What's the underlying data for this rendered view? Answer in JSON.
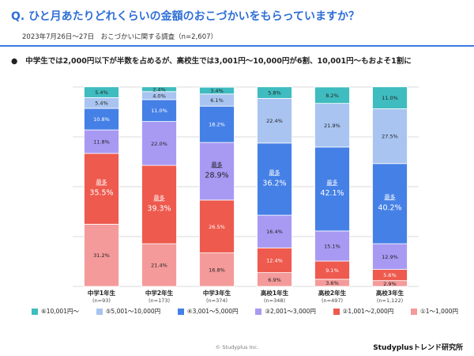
{
  "header": {
    "title": "Q. ひと月あたりどれくらいの金額のおこづかいをもらっていますか？",
    "subtitle": "2023年7月26日〜27日　おこづかいに関する調査（n=2,607）",
    "headline": "中学生では2,000円以下が半数を占めるが、高校生では3,001円〜10,000円が6割、10,001円〜もおよそ1割に",
    "bullet": "●"
  },
  "footer": {
    "copyright": "© Studyplus Inc.",
    "brand": "Studyplusトレンド研究所"
  },
  "chart_data": {
    "type": "bar",
    "stacked": true,
    "percent": true,
    "ylim": [
      0,
      100
    ],
    "grid": true,
    "legend_position": "bottom",
    "categories": [
      "中学1年生",
      "中学2年生",
      "中学3年生",
      "高校1年生",
      "高校2年生",
      "高校3年生"
    ],
    "category_n": [
      "(n=93)",
      "(n=173)",
      "(n=374)",
      "(n=348)",
      "(n=497)",
      "(n=1,122)"
    ],
    "highlight_label": "最多",
    "highlight": [
      1,
      1,
      2,
      3,
      3,
      3
    ],
    "series": [
      {
        "name": "①1〜1,000円",
        "color": "#f49a9a",
        "values": [
          31.2,
          21.4,
          16.8,
          6.9,
          3.6,
          2.9
        ]
      },
      {
        "name": "②1,001〜2,000円",
        "color": "#ee5a4e",
        "values": [
          35.5,
          39.3,
          26.5,
          12.4,
          9.1,
          5.6
        ]
      },
      {
        "name": "③2,001〜3,000円",
        "color": "#a89af3",
        "values": [
          11.8,
          22.0,
          28.9,
          16.4,
          15.1,
          12.9
        ]
      },
      {
        "name": "④3,001〜5,000円",
        "color": "#4580e6",
        "values": [
          10.8,
          11.0,
          18.2,
          36.2,
          42.1,
          40.2
        ]
      },
      {
        "name": "⑤5,001〜10,000円",
        "color": "#a9c4f0",
        "values": [
          5.4,
          4.0,
          6.1,
          22.4,
          21.9,
          27.5
        ]
      },
      {
        "name": "⑥10,001円〜",
        "color": "#3fbcc0",
        "values": [
          5.4,
          2.4,
          3.4,
          5.8,
          8.2,
          11.0
        ]
      }
    ]
  }
}
